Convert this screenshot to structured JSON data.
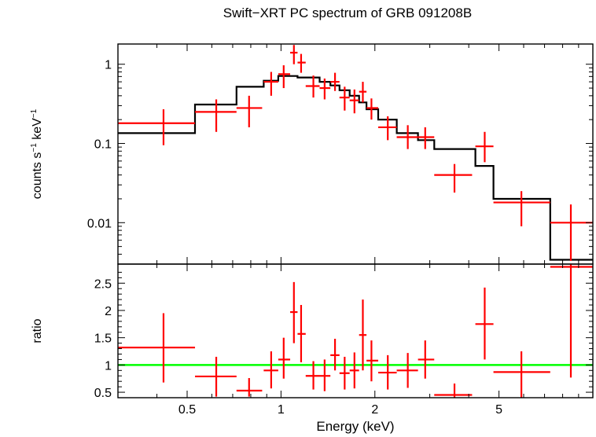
{
  "title": "Swift−XRT PC spectrum of GRB 091208B",
  "colors": {
    "data": "#ff0000",
    "model": "#000000",
    "unity": "#00ff00",
    "axes": "#000000"
  },
  "chart_data": [
    {
      "panel": "spectrum",
      "type": "scatter",
      "title": "Swift−XRT PC spectrum of GRB 091208B",
      "ylabel_main": "counts s",
      "ylabel_sup1": "−1",
      "ylabel_mid": " keV",
      "ylabel_sup2": "−1",
      "xscale": "log",
      "yscale": "log",
      "xlim": [
        0.3,
        10.0
      ],
      "ylim": [
        0.003,
        1.8
      ],
      "yticks": [
        {
          "v": 1,
          "label": "1"
        },
        {
          "v": 0.1,
          "label": "0.1"
        },
        {
          "v": 0.01,
          "label": "0.01"
        }
      ],
      "series": [
        {
          "kind": "data-with-errors",
          "points": [
            {
              "x": 0.42,
              "xlo": 0.3,
              "xhi": 0.53,
              "y": 0.18,
              "ylo": 0.095,
              "yhi": 0.27
            },
            {
              "x": 0.62,
              "xlo": 0.53,
              "xhi": 0.72,
              "y": 0.25,
              "ylo": 0.14,
              "yhi": 0.36
            },
            {
              "x": 0.79,
              "xlo": 0.72,
              "xhi": 0.87,
              "y": 0.28,
              "ylo": 0.16,
              "yhi": 0.4
            },
            {
              "x": 0.93,
              "xlo": 0.88,
              "xhi": 0.98,
              "y": 0.6,
              "ylo": 0.4,
              "yhi": 0.8
            },
            {
              "x": 1.02,
              "xlo": 0.98,
              "xhi": 1.07,
              "y": 0.75,
              "ylo": 0.5,
              "yhi": 0.97
            },
            {
              "x": 1.1,
              "xlo": 1.07,
              "xhi": 1.13,
              "y": 1.4,
              "ylo": 1.0,
              "yhi": 1.75
            },
            {
              "x": 1.16,
              "xlo": 1.13,
              "xhi": 1.2,
              "y": 1.05,
              "ylo": 0.78,
              "yhi": 1.35
            },
            {
              "x": 1.27,
              "xlo": 1.2,
              "xhi": 1.33,
              "y": 0.53,
              "ylo": 0.38,
              "yhi": 0.72
            },
            {
              "x": 1.38,
              "xlo": 1.33,
              "xhi": 1.44,
              "y": 0.5,
              "ylo": 0.36,
              "yhi": 0.66
            },
            {
              "x": 1.49,
              "xlo": 1.44,
              "xhi": 1.54,
              "y": 0.6,
              "ylo": 0.46,
              "yhi": 0.78
            },
            {
              "x": 1.6,
              "xlo": 1.54,
              "xhi": 1.66,
              "y": 0.38,
              "ylo": 0.26,
              "yhi": 0.52
            },
            {
              "x": 1.72,
              "xlo": 1.66,
              "xhi": 1.78,
              "y": 0.35,
              "ylo": 0.24,
              "yhi": 0.48
            },
            {
              "x": 1.83,
              "xlo": 1.78,
              "xhi": 1.88,
              "y": 0.45,
              "ylo": 0.33,
              "yhi": 0.6
            },
            {
              "x": 1.95,
              "xlo": 1.88,
              "xhi": 2.05,
              "y": 0.28,
              "ylo": 0.2,
              "yhi": 0.37
            },
            {
              "x": 2.2,
              "xlo": 2.05,
              "xhi": 2.35,
              "y": 0.16,
              "ylo": 0.11,
              "yhi": 0.22
            },
            {
              "x": 2.55,
              "xlo": 2.35,
              "xhi": 2.75,
              "y": 0.12,
              "ylo": 0.085,
              "yhi": 0.17
            },
            {
              "x": 2.9,
              "xlo": 2.75,
              "xhi": 3.1,
              "y": 0.12,
              "ylo": 0.085,
              "yhi": 0.16
            },
            {
              "x": 3.6,
              "xlo": 3.1,
              "xhi": 4.1,
              "y": 0.04,
              "ylo": 0.024,
              "yhi": 0.055
            },
            {
              "x": 4.5,
              "xlo": 4.2,
              "xhi": 4.8,
              "y": 0.092,
              "ylo": 0.058,
              "yhi": 0.14
            },
            {
              "x": 5.9,
              "xlo": 4.8,
              "xhi": 7.3,
              "y": 0.018,
              "ylo": 0.009,
              "yhi": 0.025
            },
            {
              "x": 8.5,
              "xlo": 7.3,
              "xhi": 10.0,
              "y": 0.01,
              "ylo": 0.0033,
              "yhi": 0.017
            }
          ]
        },
        {
          "kind": "model-step",
          "steps": [
            {
              "x0": 0.3,
              "x1": 0.53,
              "y": 0.135
            },
            {
              "x0": 0.53,
              "x1": 0.72,
              "y": 0.31
            },
            {
              "x0": 0.72,
              "x1": 0.88,
              "y": 0.52
            },
            {
              "x0": 0.88,
              "x1": 0.98,
              "y": 0.62
            },
            {
              "x0": 0.98,
              "x1": 1.13,
              "y": 0.71
            },
            {
              "x0": 1.13,
              "x1": 1.33,
              "y": 0.68
            },
            {
              "x0": 1.33,
              "x1": 1.44,
              "y": 0.6
            },
            {
              "x0": 1.44,
              "x1": 1.54,
              "y": 0.54
            },
            {
              "x0": 1.54,
              "x1": 1.66,
              "y": 0.47
            },
            {
              "x0": 1.66,
              "x1": 1.78,
              "y": 0.4
            },
            {
              "x0": 1.78,
              "x1": 1.88,
              "y": 0.33
            },
            {
              "x0": 1.88,
              "x1": 2.05,
              "y": 0.27
            },
            {
              "x0": 2.05,
              "x1": 2.35,
              "y": 0.2
            },
            {
              "x0": 2.35,
              "x1": 2.75,
              "y": 0.135
            },
            {
              "x0": 2.75,
              "x1": 3.1,
              "y": 0.11
            },
            {
              "x0": 3.1,
              "x1": 4.2,
              "y": 0.085
            },
            {
              "x0": 4.2,
              "x1": 4.8,
              "y": 0.052
            },
            {
              "x0": 4.8,
              "x1": 7.3,
              "y": 0.02
            },
            {
              "x0": 7.3,
              "x1": 10.0,
              "y": 0.0034
            }
          ]
        }
      ]
    },
    {
      "panel": "ratio",
      "type": "scatter",
      "ylabel": "ratio",
      "xlabel": "Energy (keV)",
      "xscale": "log",
      "yscale": "linear",
      "xlim": [
        0.3,
        10.0
      ],
      "ylim": [
        0.4,
        2.85
      ],
      "xticks": [
        {
          "v": 0.5,
          "label": "0.5"
        },
        {
          "v": 1,
          "label": "1"
        },
        {
          "v": 2,
          "label": "2"
        },
        {
          "v": 5,
          "label": "5"
        }
      ],
      "yticks": [
        {
          "v": 0.5,
          "label": "0.5"
        },
        {
          "v": 1,
          "label": "1"
        },
        {
          "v": 1.5,
          "label": "1.5"
        },
        {
          "v": 2,
          "label": "2"
        },
        {
          "v": 2.5,
          "label": "2.5"
        }
      ],
      "reference_line": 1.0,
      "points": [
        {
          "x": 0.42,
          "xlo": 0.3,
          "xhi": 0.53,
          "y": 1.32,
          "ylo": 0.68,
          "yhi": 1.95
        },
        {
          "x": 0.62,
          "xlo": 0.53,
          "xhi": 0.72,
          "y": 0.79,
          "ylo": 0.42,
          "yhi": 1.15
        },
        {
          "x": 0.79,
          "xlo": 0.72,
          "xhi": 0.87,
          "y": 0.53,
          "ylo": 0.42,
          "yhi": 0.76
        },
        {
          "x": 0.93,
          "xlo": 0.88,
          "xhi": 0.98,
          "y": 0.9,
          "ylo": 0.57,
          "yhi": 1.25
        },
        {
          "x": 1.02,
          "xlo": 0.98,
          "xhi": 1.07,
          "y": 1.1,
          "ylo": 0.75,
          "yhi": 1.5
        },
        {
          "x": 1.1,
          "xlo": 1.07,
          "xhi": 1.13,
          "y": 1.97,
          "ylo": 1.4,
          "yhi": 2.52
        },
        {
          "x": 1.16,
          "xlo": 1.13,
          "xhi": 1.2,
          "y": 1.57,
          "ylo": 1.05,
          "yhi": 2.1
        },
        {
          "x": 1.27,
          "xlo": 1.2,
          "xhi": 1.33,
          "y": 0.8,
          "ylo": 0.55,
          "yhi": 1.07
        },
        {
          "x": 1.38,
          "xlo": 1.33,
          "xhi": 1.44,
          "y": 0.8,
          "ylo": 0.52,
          "yhi": 1.1
        },
        {
          "x": 1.49,
          "xlo": 1.44,
          "xhi": 1.54,
          "y": 1.18,
          "ylo": 0.9,
          "yhi": 1.48
        },
        {
          "x": 1.6,
          "xlo": 1.54,
          "xhi": 1.66,
          "y": 0.85,
          "ylo": 0.55,
          "yhi": 1.15
        },
        {
          "x": 1.72,
          "xlo": 1.66,
          "xhi": 1.78,
          "y": 0.9,
          "ylo": 0.57,
          "yhi": 1.23
        },
        {
          "x": 1.83,
          "xlo": 1.78,
          "xhi": 1.88,
          "y": 1.55,
          "ylo": 0.9,
          "yhi": 2.2
        },
        {
          "x": 1.95,
          "xlo": 1.88,
          "xhi": 2.05,
          "y": 1.08,
          "ylo": 0.7,
          "yhi": 1.45
        },
        {
          "x": 2.2,
          "xlo": 2.05,
          "xhi": 2.35,
          "y": 0.86,
          "ylo": 0.55,
          "yhi": 1.18
        },
        {
          "x": 2.55,
          "xlo": 2.35,
          "xhi": 2.75,
          "y": 0.9,
          "ylo": 0.58,
          "yhi": 1.22
        },
        {
          "x": 2.9,
          "xlo": 2.75,
          "xhi": 3.1,
          "y": 1.1,
          "ylo": 0.75,
          "yhi": 1.45
        },
        {
          "x": 3.6,
          "xlo": 3.1,
          "xhi": 4.1,
          "y": 0.45,
          "ylo": 0.4,
          "yhi": 0.66
        },
        {
          "x": 4.5,
          "xlo": 4.2,
          "xhi": 4.8,
          "y": 1.75,
          "ylo": 1.1,
          "yhi": 2.42
        },
        {
          "x": 5.9,
          "xlo": 4.8,
          "xhi": 7.3,
          "y": 0.87,
          "ylo": 0.4,
          "yhi": 1.25
        },
        {
          "x": 8.5,
          "xlo": 7.3,
          "xhi": 10.0,
          "y": 2.8,
          "ylo": 0.77,
          "yhi": 2.85
        }
      ]
    }
  ]
}
